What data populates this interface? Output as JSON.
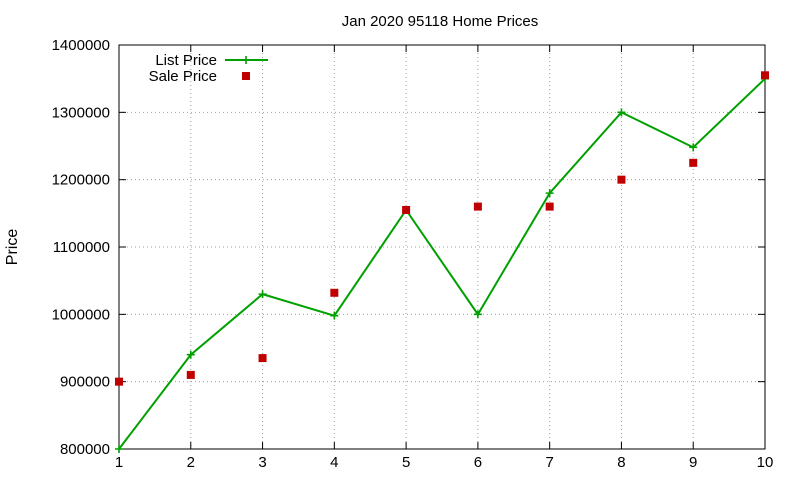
{
  "chart_data": {
    "type": "line",
    "title": "Jan 2020 95118 Home Prices",
    "xlabel": "",
    "ylabel": "Price",
    "x": [
      1,
      2,
      3,
      4,
      5,
      6,
      7,
      8,
      9,
      10
    ],
    "xlim": [
      1,
      10
    ],
    "ylim": [
      800000,
      1400000
    ],
    "xticks": [
      "1",
      "2",
      "3",
      "4",
      "5",
      "6",
      "7",
      "8",
      "9",
      "10"
    ],
    "yticks": [
      "800000",
      "900000",
      "1000000",
      "1100000",
      "1200000",
      "1300000",
      "1400000"
    ],
    "grid": true,
    "legend_position": "top-left",
    "series": [
      {
        "name": "List Price",
        "style": "line-with-plus-markers",
        "color": "#00a000",
        "values": [
          800000,
          940000,
          1030000,
          998000,
          1155000,
          1000000,
          1180000,
          1300000,
          1248000,
          1350000
        ]
      },
      {
        "name": "Sale Price",
        "style": "square-markers",
        "color": "#c00000",
        "values": [
          900000,
          910000,
          935000,
          1032000,
          1155000,
          1160000,
          1160000,
          1200000,
          1225000,
          1355000
        ]
      }
    ]
  }
}
